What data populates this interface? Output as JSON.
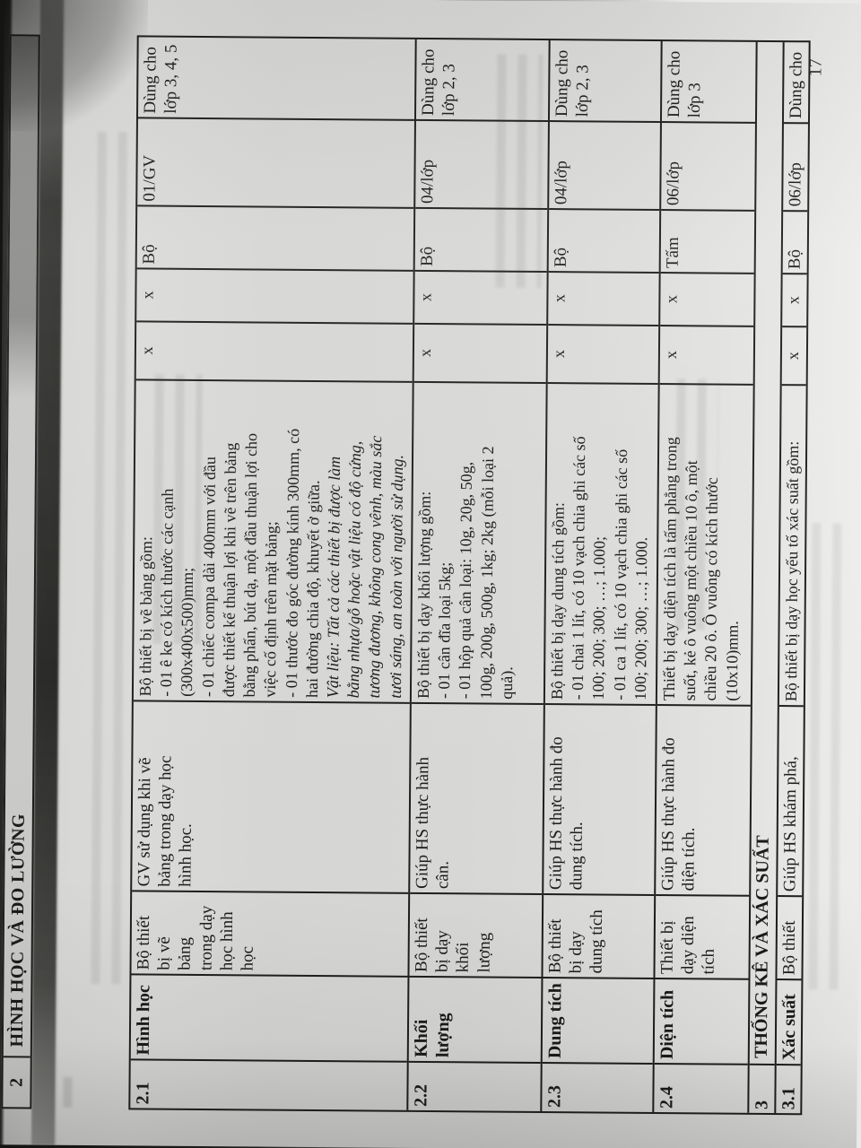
{
  "page": {
    "number": "17"
  },
  "section2": {
    "no": "2",
    "title": "HÌNH HỌC VÀ ĐO LƯỜNG"
  },
  "section3": {
    "no": "3",
    "title": "THỐNG KÊ VÀ XÁC SUẤT"
  },
  "rows": [
    {
      "stt": "2.1",
      "topic": "Hình học",
      "device": "Bộ thiết\nbị vẽ\nbảng\ntrong dạy\nhọc hình\nhọc",
      "purpose": "GV sử dụng khi vẽ\nbảng trong dạy học\nhình học.",
      "desc": "Bộ thiết bị vẽ bảng gồm:\n- 01 ê ke có kích thước các cạnh\n(300x400x500)mm;\n- 01 chiếc compa dài 400mm với đầu\nđược thiết kế thuận lợi khi vẽ trên bảng\nbằng phấn, bút dạ, một đầu thuận lợi cho\nviệc cố định trên mặt bảng;\n- 01 thước đo góc đường kính 300mm, có\nhai đường chia độ, khuyết ở giữa.",
      "material": "Vật liệu: Tất cả các thiết bị được làm\nbằng nhựa/gỗ hoặc vật liệu có độ cứng,\ntương đương, không cong vênh, màu sắc\ntươi sáng, an toàn với người sử dụng.",
      "gv": "x",
      "hs": "x",
      "unit": "Bộ",
      "qty": "01/GV",
      "note": "Dùng cho\nlớp 3, 4, 5"
    },
    {
      "stt": "2.2",
      "topic": "Khối\nlượng",
      "device": "Bộ thiết\nbị dạy\nkhối\nlượng",
      "purpose": "Giúp HS thực hành\ncân.",
      "desc": "Bộ thiết bị dạy khối lượng gồm:\n- 01 cân đĩa loại 5kg;\n- 01 hộp quả cân loại: 10g, 20g, 50g,\n100g, 200g, 500g, 1kg; 2kg (mỗi loại 2\nquả).",
      "gv": "x",
      "hs": "x",
      "unit": "Bộ",
      "qty": "04/lớp",
      "note": "Dùng cho\nlớp 2, 3"
    },
    {
      "stt": "2.3",
      "topic": "Dung tích",
      "device": "Bộ thiết\nbị dạy\ndung tích",
      "purpose": "Giúp HS thực hành đo\ndung tích.",
      "desc": "Bộ thiết bị dạy dung tích gồm:\n- 01 chai 1 lít, có 10 vạch chia ghi các số\n100; 200; 300; …; 1.000;\n- 01 ca 1 lít, có 10 vạch chia ghi các số\n100; 200; 300; …; 1.000.",
      "gv": "x",
      "hs": "x",
      "unit": "Bộ",
      "qty": "04/lớp",
      "note": "Dùng cho\nlớp 2, 3"
    },
    {
      "stt": "2.4",
      "topic": "Diện tích",
      "device": "Thiết bị\ndạy diện\ntích",
      "purpose": "Giúp HS thực hành đo\ndiện tích.",
      "desc": "Thiết bị dạy diện tích là tấm phẳng trong\nsuốt, kẻ ô vuông một chiều 10 ô, một\nchiều 20 ô. Ô vuông có kích thước\n(10x10)mm.",
      "gv": "x",
      "hs": "x",
      "unit": "Tấm",
      "qty": "06/lớp",
      "note": "Dùng cho\nlớp 3"
    },
    {
      "stt": "3.1",
      "topic": "Xác suất",
      "device": "Bộ thiết",
      "purpose": "Giúp HS khám phá,",
      "desc": "Bộ thiết bị dạy học yếu tố xác suất gồm:",
      "gv": "x",
      "hs": "x",
      "unit": "Bộ",
      "qty": "06/lớp",
      "note": "Dùng cho"
    }
  ]
}
